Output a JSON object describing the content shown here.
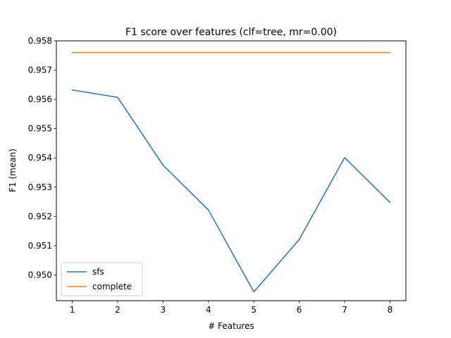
{
  "chart_data": {
    "type": "line",
    "title": "F1 score over features (clf=tree, mr=0.00)",
    "xlabel": "# Features",
    "ylabel": "F1 (mean)",
    "x": [
      1,
      2,
      3,
      4,
      5,
      6,
      7,
      8
    ],
    "x_ticks": [
      "1",
      "2",
      "3",
      "4",
      "5",
      "6",
      "7",
      "8"
    ],
    "y_ticks": [
      "0.950",
      "0.951",
      "0.952",
      "0.953",
      "0.954",
      "0.955",
      "0.956",
      "0.957",
      "0.958"
    ],
    "xlim": [
      0.65,
      8.35
    ],
    "ylim": [
      0.94912,
      0.958
    ],
    "grid": false,
    "legend_position": "lower-left",
    "series": [
      {
        "name": "sfs",
        "color": "#1f77b4",
        "values": [
          0.95632,
          0.95607,
          0.95375,
          0.95222,
          0.94942,
          0.95121,
          0.95401,
          0.95248
        ]
      },
      {
        "name": "complete",
        "color": "#ff7f0e",
        "values": [
          0.9576,
          0.9576,
          0.9576,
          0.9576,
          0.9576,
          0.9576,
          0.9576,
          0.9576
        ]
      }
    ]
  }
}
